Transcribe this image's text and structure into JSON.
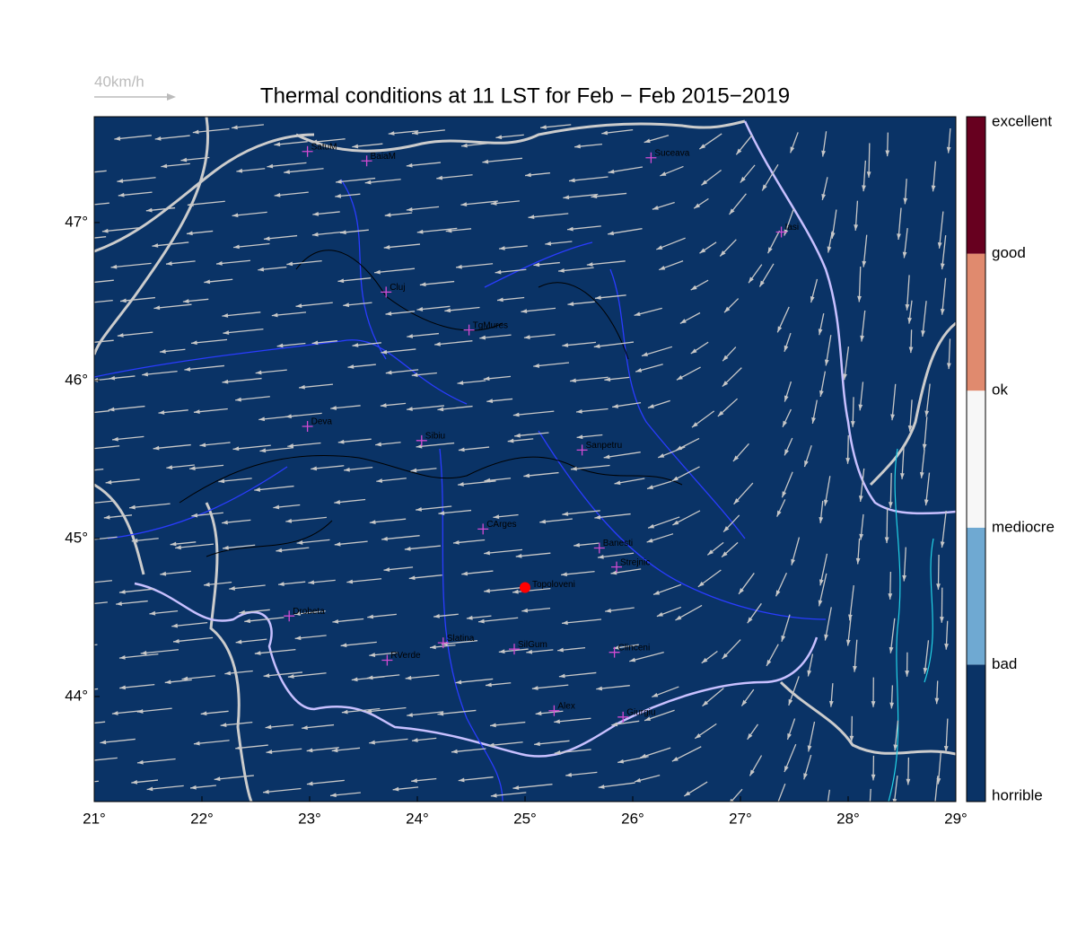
{
  "map": {
    "title": "Thermal conditions at 11 LST for Feb − Feb  2015−2019",
    "wind_scale_label": "40km/h",
    "xlim": [
      21,
      29
    ],
    "ylim": [
      43.335,
      47.67
    ],
    "xticks": [
      {
        "value": 21,
        "label": "21°"
      },
      {
        "value": 22,
        "label": "22°"
      },
      {
        "value": 23,
        "label": "23°"
      },
      {
        "value": 24,
        "label": "24°"
      },
      {
        "value": 25,
        "label": "25°"
      },
      {
        "value": 26,
        "label": "26°"
      },
      {
        "value": 27,
        "label": "27°"
      },
      {
        "value": 28,
        "label": "28°"
      },
      {
        "value": 29,
        "label": "29°"
      }
    ],
    "yticks": [
      {
        "value": 44,
        "label": "44°"
      },
      {
        "value": 45,
        "label": "45°"
      },
      {
        "value": 46,
        "label": "46°"
      },
      {
        "value": 47,
        "label": "47°"
      }
    ],
    "background_color": "#0a3366",
    "colorbar": {
      "labels": [
        "horrible",
        "bad",
        "mediocre",
        "ok",
        "good",
        "excellent"
      ],
      "colors": [
        "#0a3366",
        "#6fa9d2",
        "#f7f7f7",
        "#e08a6e",
        "#67001f"
      ]
    },
    "cities": [
      {
        "name": "SatuM",
        "lon": 22.98,
        "lat": 47.45
      },
      {
        "name": "BaiaM",
        "lon": 23.53,
        "lat": 47.39
      },
      {
        "name": "Suceava",
        "lon": 26.17,
        "lat": 47.41
      },
      {
        "name": "Iasi",
        "lon": 27.38,
        "lat": 46.94
      },
      {
        "name": "Cluj",
        "lon": 23.71,
        "lat": 46.56
      },
      {
        "name": "TgMures",
        "lon": 24.48,
        "lat": 46.32
      },
      {
        "name": "Deva",
        "lon": 22.98,
        "lat": 45.71
      },
      {
        "name": "Sibiu",
        "lon": 24.04,
        "lat": 45.62
      },
      {
        "name": "Sanpetru",
        "lon": 25.53,
        "lat": 45.56
      },
      {
        "name": "CArges",
        "lon": 24.61,
        "lat": 45.06
      },
      {
        "name": "Banesti",
        "lon": 25.69,
        "lat": 44.94
      },
      {
        "name": "Strejnic",
        "lon": 25.85,
        "lat": 44.82
      },
      {
        "name": "Drobeta",
        "lon": 22.81,
        "lat": 44.51
      },
      {
        "name": "Slatina",
        "lon": 24.24,
        "lat": 44.34
      },
      {
        "name": "SilGum",
        "lon": 24.9,
        "lat": 44.3
      },
      {
        "name": "Clinceni",
        "lon": 25.83,
        "lat": 44.28
      },
      {
        "name": "RVerde",
        "lon": 23.72,
        "lat": 44.23
      },
      {
        "name": "Alex",
        "lon": 25.27,
        "lat": 43.91
      },
      {
        "name": "Giurgiu",
        "lon": 25.91,
        "lat": 43.87
      }
    ],
    "site": {
      "name": "Topoloveni",
      "lon": 25.0,
      "lat": 44.69,
      "color": "#ff0000"
    }
  }
}
